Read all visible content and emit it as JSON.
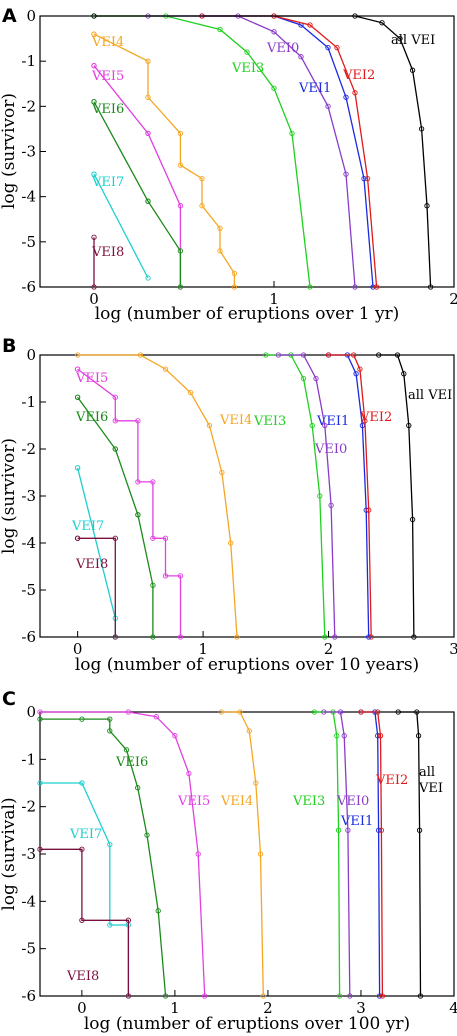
{
  "figure": {
    "panels": [
      "A",
      "B",
      "C"
    ]
  },
  "chart_data": [
    {
      "id": "A",
      "type": "line",
      "xlabel": "log (number of eruptions over 1 yr)",
      "ylabel": "log (survivor)",
      "xlim": [
        -0.3,
        2
      ],
      "ylim": [
        -6,
        0
      ],
      "xticks": [
        0,
        1,
        2
      ],
      "yticks": [
        0,
        -1,
        -2,
        -3,
        -4,
        -5,
        -6
      ],
      "grid": false,
      "series": [
        {
          "name": "VEI4",
          "color": "#f5a623",
          "x": [
            0,
            0,
            0.3,
            0.3,
            0.48,
            0.48,
            0.6,
            0.6,
            0.7,
            0.7,
            0.78,
            0.78
          ],
          "y": [
            -0.4,
            -0.4,
            -1.0,
            -1.8,
            -2.6,
            -3.3,
            -3.6,
            -4.2,
            -4.7,
            -5.2,
            -5.7,
            -6
          ]
        },
        {
          "name": "VEI5",
          "color": "#e040e0",
          "x": [
            0,
            0,
            0.3,
            0.3,
            0.48,
            0.48
          ],
          "y": [
            -1.1,
            -1.1,
            -2.6,
            -2.6,
            -4.2,
            -6
          ]
        },
        {
          "name": "VEI6",
          "color": "#1a8a1a",
          "x": [
            0,
            0,
            0.3,
            0.3,
            0.48,
            0.48
          ],
          "y": [
            -1.9,
            -1.9,
            -4.1,
            -4.1,
            -5.2,
            -6
          ]
        },
        {
          "name": "VEI7",
          "color": "#1ecfcf",
          "x": [
            0,
            0,
            0.3
          ],
          "y": [
            -3.5,
            -3.5,
            -5.8
          ]
        },
        {
          "name": "VEI8",
          "color": "#7a1040",
          "x": [
            0,
            0
          ],
          "y": [
            -4.9,
            -6
          ]
        },
        {
          "name": "VEI3",
          "color": "#20d020",
          "x": [
            0,
            0.4,
            0.7,
            0.85,
            1.0,
            1.1,
            1.2
          ],
          "y": [
            0,
            0,
            -0.3,
            -0.8,
            -1.6,
            -2.6,
            -6
          ]
        },
        {
          "name": "VEI0",
          "color": "#8a3cc8",
          "x": [
            0.3,
            0.8,
            1.0,
            1.15,
            1.3,
            1.4,
            1.45
          ],
          "y": [
            0,
            0,
            -0.35,
            -0.9,
            -2.0,
            -3.5,
            -6
          ]
        },
        {
          "name": "VEI1",
          "color": "#1a2ae0",
          "x": [
            0.6,
            1.0,
            1.15,
            1.3,
            1.4,
            1.5,
            1.55
          ],
          "y": [
            0,
            0,
            -0.2,
            -0.7,
            -1.8,
            -3.6,
            -6
          ]
        },
        {
          "name": "VEI2",
          "color": "#e01a1a",
          "x": [
            0.6,
            1.0,
            1.2,
            1.35,
            1.45,
            1.52,
            1.57
          ],
          "y": [
            0,
            0,
            -0.2,
            -0.7,
            -1.7,
            -3.6,
            -6
          ]
        },
        {
          "name": "all VEI",
          "color": "#000000",
          "x": [
            0,
            1.45,
            1.6,
            1.7,
            1.77,
            1.82,
            1.85,
            1.87
          ],
          "y": [
            0,
            0,
            -0.15,
            -0.5,
            -1.2,
            -2.5,
            -4.2,
            -6
          ]
        }
      ]
    },
    {
      "id": "B",
      "type": "line",
      "xlabel": "log (number of eruptions over 10 years)",
      "ylabel": "log (survivor)",
      "xlim": [
        -0.3,
        3
      ],
      "ylim": [
        -6,
        0
      ],
      "xticks": [
        0,
        1,
        2,
        3
      ],
      "yticks": [
        0,
        -1,
        -2,
        -3,
        -4,
        -5,
        -6
      ],
      "grid": false,
      "series": [
        {
          "name": "VEI4",
          "color": "#f5a623",
          "x": [
            0,
            0.5,
            0.7,
            0.9,
            1.05,
            1.15,
            1.22,
            1.27
          ],
          "y": [
            0,
            0,
            -0.3,
            -0.8,
            -1.5,
            -2.5,
            -4.0,
            -6
          ]
        },
        {
          "name": "VEI5",
          "color": "#e040e0",
          "x": [
            0,
            0,
            0.3,
            0.3,
            0.48,
            0.48,
            0.6,
            0.6,
            0.7,
            0.7,
            0.82,
            0.82
          ],
          "y": [
            -0.3,
            -0.3,
            -0.9,
            -1.4,
            -1.4,
            -2.7,
            -2.7,
            -3.9,
            -3.9,
            -4.7,
            -4.7,
            -6
          ]
        },
        {
          "name": "VEI6",
          "color": "#1a8a1a",
          "x": [
            0,
            0,
            0.3,
            0.3,
            0.48,
            0.48,
            0.6,
            0.6
          ],
          "y": [
            -0.9,
            -0.9,
            -2.0,
            -2.0,
            -3.4,
            -3.4,
            -4.9,
            -6
          ]
        },
        {
          "name": "VEI7",
          "color": "#1ecfcf",
          "x": [
            0,
            0,
            0.3,
            0.3
          ],
          "y": [
            -2.4,
            -2.4,
            -5.6,
            -6
          ]
        },
        {
          "name": "VEI8",
          "color": "#7a1040",
          "x": [
            0,
            0,
            0.3,
            0.3
          ],
          "y": [
            -3.9,
            -3.9,
            -3.9,
            -6
          ]
        },
        {
          "name": "VEI3",
          "color": "#20d020",
          "x": [
            1.5,
            1.7,
            1.8,
            1.87,
            1.93,
            1.97
          ],
          "y": [
            0,
            0,
            -0.5,
            -1.5,
            -3.0,
            -6
          ]
        },
        {
          "name": "VEI0",
          "color": "#8a3cc8",
          "x": [
            1.6,
            1.8,
            1.9,
            1.97,
            2.02,
            2.05
          ],
          "y": [
            0,
            0,
            -0.5,
            -1.5,
            -3.2,
            -6
          ]
        },
        {
          "name": "VEI1",
          "color": "#1a2ae0",
          "x": [
            2.0,
            2.15,
            2.22,
            2.27,
            2.3,
            2.32
          ],
          "y": [
            0,
            0,
            -0.4,
            -1.5,
            -3.3,
            -6
          ]
        },
        {
          "name": "VEI2",
          "color": "#e01a1a",
          "x": [
            2.0,
            2.2,
            2.25,
            2.29,
            2.32,
            2.34
          ],
          "y": [
            0,
            0,
            -0.3,
            -1.4,
            -3.3,
            -6
          ]
        },
        {
          "name": "all VEI",
          "color": "#000000",
          "x": [
            2.4,
            2.55,
            2.6,
            2.64,
            2.67,
            2.68
          ],
          "y": [
            0,
            0,
            -0.4,
            -1.5,
            -3.5,
            -6
          ]
        }
      ]
    },
    {
      "id": "C",
      "type": "line",
      "xlabel": "log (number of eruptions over 100 yr)",
      "ylabel": "log (survival)",
      "xlim": [
        -0.45,
        4
      ],
      "ylim": [
        -6,
        0
      ],
      "xticks": [
        0,
        1,
        2,
        3,
        4
      ],
      "yticks": [
        0,
        -1,
        -2,
        -3,
        -4,
        -5,
        -6
      ],
      "grid": false,
      "series": [
        {
          "name": "VEI4",
          "color": "#f5a623",
          "x": [
            1.5,
            1.7,
            1.8,
            1.87,
            1.92,
            1.95
          ],
          "y": [
            0,
            0,
            -0.4,
            -1.5,
            -3.0,
            -6
          ]
        },
        {
          "name": "VEI5",
          "color": "#e040e0",
          "x": [
            -0.45,
            0.5,
            0.8,
            1.0,
            1.15,
            1.25,
            1.32
          ],
          "y": [
            0,
            0,
            -0.1,
            -0.5,
            -1.3,
            -3.0,
            -6
          ]
        },
        {
          "name": "VEI6",
          "color": "#1a8a1a",
          "x": [
            -0.45,
            0,
            0.3,
            0.3,
            0.48,
            0.6,
            0.7,
            0.82,
            0.9
          ],
          "y": [
            -0.15,
            -0.15,
            -0.15,
            -0.4,
            -0.8,
            -1.6,
            -2.6,
            -4.2,
            -6
          ]
        },
        {
          "name": "VEI7",
          "color": "#1ecfcf",
          "x": [
            -0.45,
            0,
            0,
            0.3,
            0.3,
            0.5,
            0.5
          ],
          "y": [
            -1.5,
            -1.5,
            -1.5,
            -2.8,
            -4.5,
            -4.5,
            -6
          ]
        },
        {
          "name": "VEI8",
          "color": "#7a1040",
          "x": [
            -0.45,
            0,
            0,
            0.5,
            0.5
          ],
          "y": [
            -2.9,
            -2.9,
            -4.4,
            -4.4,
            -6
          ]
        },
        {
          "name": "VEI3",
          "color": "#20d020",
          "x": [
            2.5,
            2.7,
            2.74,
            2.76,
            2.77
          ],
          "y": [
            0,
            0,
            -0.5,
            -2.5,
            -6
          ]
        },
        {
          "name": "VEI0",
          "color": "#8a3cc8",
          "x": [
            2.6,
            2.78,
            2.82,
            2.86,
            2.88
          ],
          "y": [
            0,
            0,
            -0.5,
            -2.5,
            -6
          ]
        },
        {
          "name": "VEI1",
          "color": "#1a2ae0",
          "x": [
            3.0,
            3.15,
            3.18,
            3.19,
            3.2
          ],
          "y": [
            0,
            0,
            -0.5,
            -2.5,
            -6
          ]
        },
        {
          "name": "VEI2",
          "color": "#e01a1a",
          "x": [
            3.0,
            3.18,
            3.21,
            3.22,
            3.23
          ],
          "y": [
            0,
            0,
            -0.5,
            -2.5,
            -6
          ]
        },
        {
          "name": "all VEI",
          "color": "#000000",
          "x": [
            3.4,
            3.6,
            3.62,
            3.63,
            3.64
          ],
          "y": [
            0,
            0,
            -0.5,
            -2.5,
            -6
          ]
        }
      ]
    }
  ],
  "labels": {
    "A": {
      "VEI4": "VEI4",
      "VEI5": "VEI5",
      "VEI6": "VEI6",
      "VEI7": "VEI7",
      "VEI8": "VEI8",
      "VEI3": "VEI3",
      "VEI0": "VEI0",
      "VEI1": "VEI1",
      "VEI2": "VEI2",
      "all": "all VEI"
    },
    "B": {
      "VEI5": "VEI5",
      "VEI6": "VEI6",
      "VEI7": "VEI7",
      "VEI8": "VEI8",
      "VEI4": "VEI4",
      "VEI3": "VEI3",
      "VEI0": "VEI0",
      "VEI1": "VEI1",
      "VEI2": "VEI2",
      "all": "all VEI"
    },
    "C": {
      "VEI6": "VEI6",
      "VEI5": "VEI5",
      "VEI4": "VEI4",
      "VEI3": "VEI3",
      "VEI0": "VEI0",
      "VEI1": "VEI1",
      "VEI2": "VEI2",
      "all1": "all",
      "all2": "VEI",
      "VEI7": "VEI7",
      "VEI8": "VEI8"
    }
  },
  "colors": {
    "VEI0": "#8a3cc8",
    "VEI1": "#1a2ae0",
    "VEI2": "#e01a1a",
    "VEI3": "#20d020",
    "VEI4": "#f5a623",
    "VEI5": "#e040e0",
    "VEI6": "#1a8a1a",
    "VEI7": "#1ecfcf",
    "VEI8": "#7a1040",
    "all": "#000000"
  }
}
